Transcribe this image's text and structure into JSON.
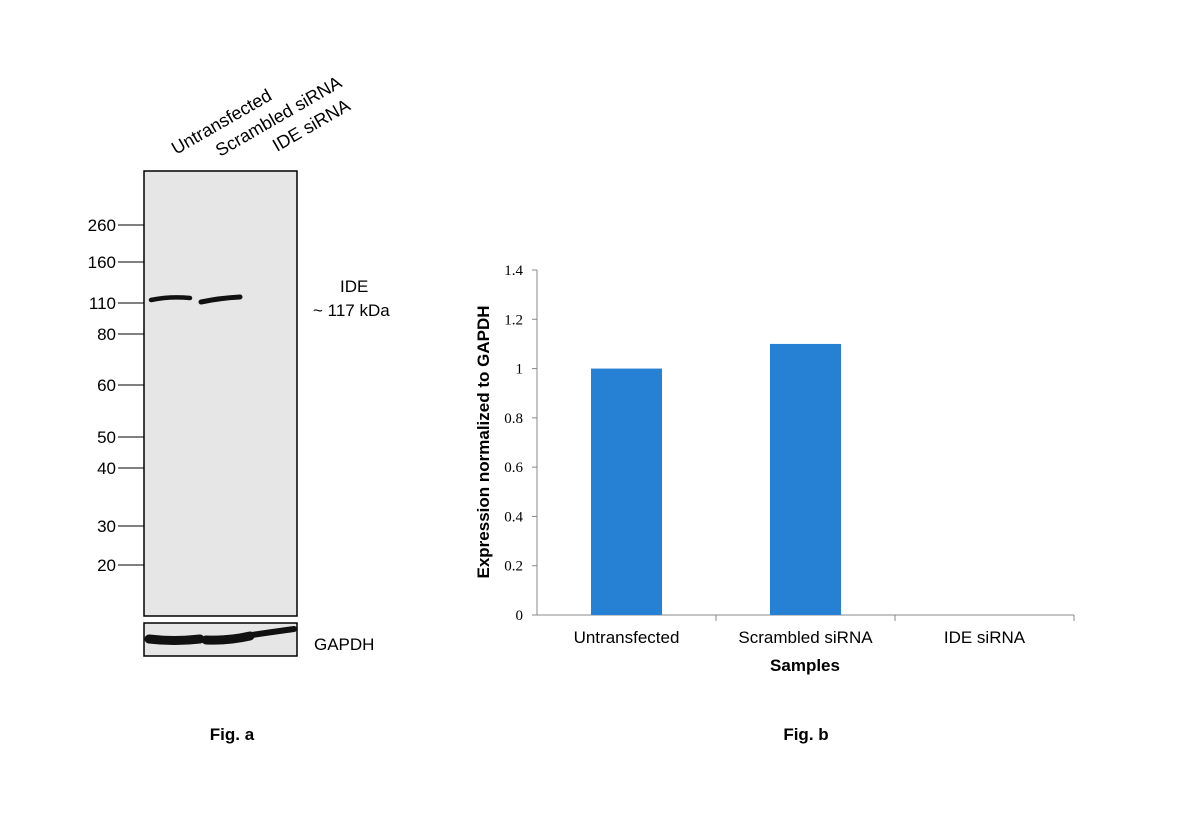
{
  "fig_a": {
    "caption": "Fig. a",
    "lanes": [
      "Untransfected",
      "Scrambled siRNA",
      "IDE siRNA"
    ],
    "marker_values": [
      "260",
      "160",
      "110",
      "80",
      "60",
      "50",
      "40",
      "30",
      "20"
    ],
    "target_name": "IDE",
    "target_size": "~ 117 kDa",
    "loading_control": "GAPDH",
    "ide_band_present": [
      true,
      true,
      false
    ],
    "gapdh_band_present": [
      true,
      true,
      true
    ],
    "colors": {
      "membrane": "#e6e6e6",
      "band": "#111111"
    }
  },
  "fig_b": {
    "caption": "Fig. b",
    "chart_data": {
      "type": "bar",
      "categories": [
        "Untransfected",
        "Scrambled siRNA",
        "IDE siRNA"
      ],
      "values": [
        1.0,
        1.1,
        0.0
      ],
      "xlabel": "Samples",
      "ylabel": "Expression normalized to GAPDH",
      "ylim": [
        0,
        1.4
      ],
      "yticks": [
        "0",
        "0.2",
        "0.4",
        "0.6",
        "0.8",
        "1",
        "1.2",
        "1.4"
      ],
      "grid": false,
      "legend": "none",
      "bar_color": "#2680d4"
    }
  }
}
